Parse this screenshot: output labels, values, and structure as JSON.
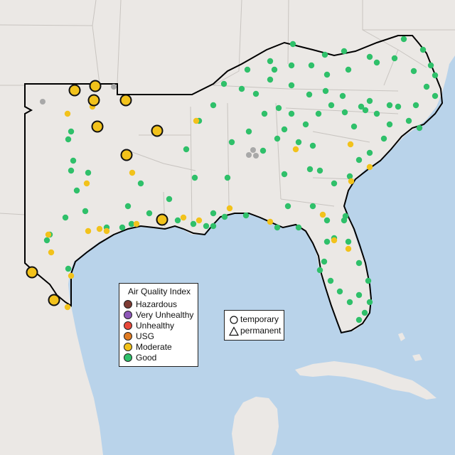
{
  "legend": {
    "title": "Air Quality Index",
    "categories": [
      {
        "label": "Hazardous",
        "color": "#7e3b33"
      },
      {
        "label": "Very Unhealthy",
        "color": "#8e57b8"
      },
      {
        "label": "Unhealthy",
        "color": "#e8483a"
      },
      {
        "label": "USG",
        "color": "#e07b22"
      },
      {
        "label": "Moderate",
        "color": "#f2c21b"
      },
      {
        "label": "Good",
        "color": "#2fc06a"
      }
    ]
  },
  "type_legend": {
    "temporary": "temporary",
    "permanent": "permanent"
  },
  "colors": {
    "water": "#b9d3ea",
    "land": "#ebe8e5",
    "state_border": "#c8c4c0",
    "region_border": "#000000",
    "unknown": "#a8a8a8"
  }
}
